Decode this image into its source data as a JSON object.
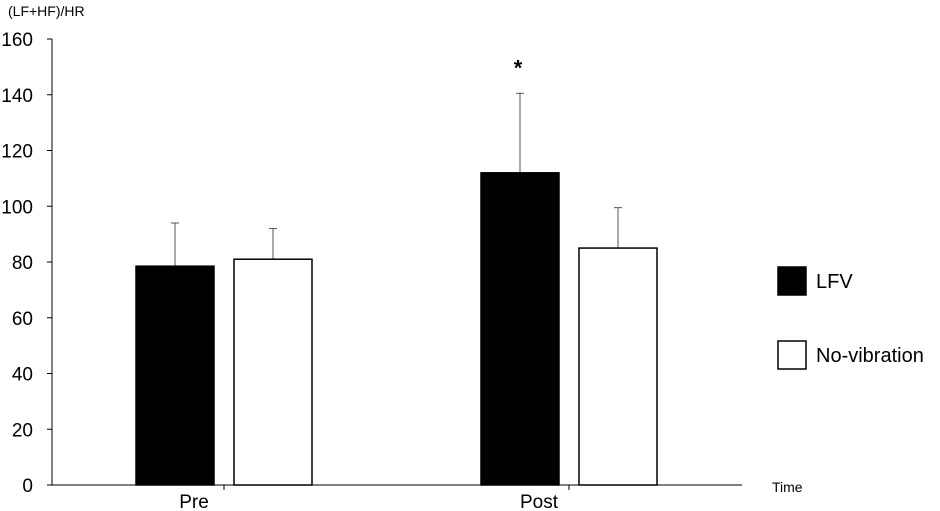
{
  "chart_data": {
    "type": "bar",
    "ylabel": "(LF+HF)/HR",
    "xlabel": "Time",
    "categories": [
      "Pre",
      "Post"
    ],
    "ylim": [
      0,
      160
    ],
    "yticks": [
      0,
      20,
      40,
      60,
      80,
      100,
      120,
      140,
      160
    ],
    "grid": false,
    "legend_placement": "right",
    "series": [
      {
        "name": "LFV",
        "values": [
          78.5,
          112
        ],
        "errors": [
          15.5,
          28.5
        ],
        "fill": "#000000"
      },
      {
        "name": "No-vibration",
        "values": [
          81,
          85
        ],
        "errors": [
          11,
          14.5
        ],
        "fill": "#ffffff"
      }
    ],
    "annotations": [
      {
        "text": "*",
        "category": "Post",
        "series": "LFV"
      }
    ]
  }
}
